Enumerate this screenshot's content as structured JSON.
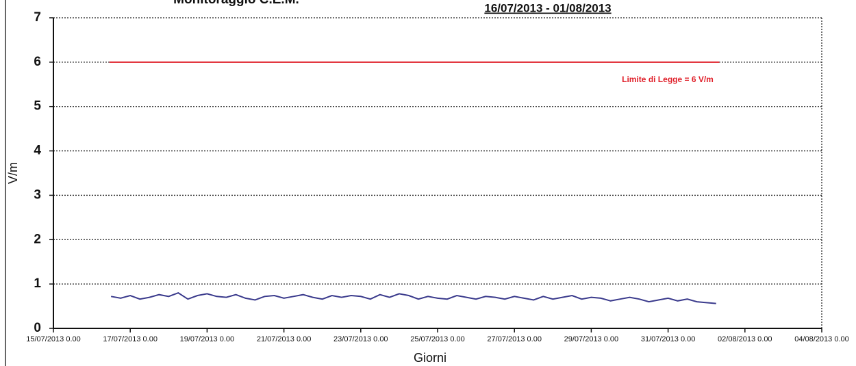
{
  "chart_data": {
    "type": "line",
    "title": "Monitoraggio C.E.M.",
    "subtitle": "16/07/2013 - 01/08/2013",
    "x_label": "Giorni",
    "y_label": "V/m",
    "annotation": "Limite di Legge = 6 V/m",
    "ylim": [
      0,
      7
    ],
    "yticks": [
      0,
      1,
      2,
      3,
      4,
      5,
      6,
      7
    ],
    "xlim": [
      "2013-07-15T00:00",
      "2013-08-04T00:00"
    ],
    "xticks": [
      {
        "value": "2013-07-15T00:00",
        "label": "15/07/2013 0.00"
      },
      {
        "value": "2013-07-17T00:00",
        "label": "17/07/2013 0.00"
      },
      {
        "value": "2013-07-19T00:00",
        "label": "19/07/2013 0.00"
      },
      {
        "value": "2013-07-21T00:00",
        "label": "21/07/2013 0.00"
      },
      {
        "value": "2013-07-23T00:00",
        "label": "23/07/2013 0.00"
      },
      {
        "value": "2013-07-25T00:00",
        "label": "25/07/2013 0.00"
      },
      {
        "value": "2013-07-27T00:00",
        "label": "27/07/2013 0.00"
      },
      {
        "value": "2013-07-29T00:00",
        "label": "29/07/2013 0.00"
      },
      {
        "value": "2013-07-31T00:00",
        "label": "31/07/2013 0.00"
      },
      {
        "value": "2013-08-02T00:00",
        "label": "02/08/2013 0.00"
      },
      {
        "value": "2013-08-04T00:00",
        "label": "04/08/2013 0.00"
      }
    ],
    "grid": true,
    "series": [
      {
        "color": "#e0202a",
        "x": [
          "2013-07-16T11:00",
          "2013-08-01T08:00"
        ],
        "values": [
          6,
          6
        ]
      },
      {
        "color": "#3a3a8c",
        "x": [
          "2013-07-16T12:00",
          "2013-07-16T18:00",
          "2013-07-17T00:00",
          "2013-07-17T06:00",
          "2013-07-17T12:00",
          "2013-07-17T18:00",
          "2013-07-18T00:00",
          "2013-07-18T06:00",
          "2013-07-18T12:00",
          "2013-07-18T18:00",
          "2013-07-19T00:00",
          "2013-07-19T06:00",
          "2013-07-19T12:00",
          "2013-07-19T18:00",
          "2013-07-20T00:00",
          "2013-07-20T06:00",
          "2013-07-20T12:00",
          "2013-07-20T18:00",
          "2013-07-21T00:00",
          "2013-07-21T06:00",
          "2013-07-21T12:00",
          "2013-07-21T18:00",
          "2013-07-22T00:00",
          "2013-07-22T06:00",
          "2013-07-22T12:00",
          "2013-07-22T18:00",
          "2013-07-23T00:00",
          "2013-07-23T06:00",
          "2013-07-23T12:00",
          "2013-07-23T18:00",
          "2013-07-24T00:00",
          "2013-07-24T06:00",
          "2013-07-24T12:00",
          "2013-07-24T18:00",
          "2013-07-25T00:00",
          "2013-07-25T06:00",
          "2013-07-25T12:00",
          "2013-07-25T18:00",
          "2013-07-26T00:00",
          "2013-07-26T06:00",
          "2013-07-26T12:00",
          "2013-07-26T18:00",
          "2013-07-27T00:00",
          "2013-07-27T06:00",
          "2013-07-27T12:00",
          "2013-07-27T18:00",
          "2013-07-28T00:00",
          "2013-07-28T06:00",
          "2013-07-28T12:00",
          "2013-07-28T18:00",
          "2013-07-29T00:00",
          "2013-07-29T06:00",
          "2013-07-29T12:00",
          "2013-07-29T18:00",
          "2013-07-30T00:00",
          "2013-07-30T06:00",
          "2013-07-30T12:00",
          "2013-07-30T18:00",
          "2013-07-31T00:00",
          "2013-07-31T06:00",
          "2013-07-31T12:00",
          "2013-07-31T18:00",
          "2013-08-01T00:00",
          "2013-08-01T06:00"
        ],
        "values": [
          0.72,
          0.68,
          0.74,
          0.66,
          0.7,
          0.76,
          0.72,
          0.8,
          0.66,
          0.74,
          0.78,
          0.72,
          0.7,
          0.76,
          0.68,
          0.64,
          0.72,
          0.74,
          0.68,
          0.72,
          0.76,
          0.7,
          0.66,
          0.74,
          0.7,
          0.74,
          0.72,
          0.66,
          0.76,
          0.7,
          0.78,
          0.74,
          0.66,
          0.72,
          0.68,
          0.66,
          0.74,
          0.7,
          0.66,
          0.72,
          0.7,
          0.66,
          0.72,
          0.68,
          0.64,
          0.72,
          0.66,
          0.7,
          0.74,
          0.66,
          0.7,
          0.68,
          0.62,
          0.66,
          0.7,
          0.66,
          0.6,
          0.64,
          0.68,
          0.62,
          0.66,
          0.6,
          0.58,
          0.56
        ]
      }
    ]
  }
}
